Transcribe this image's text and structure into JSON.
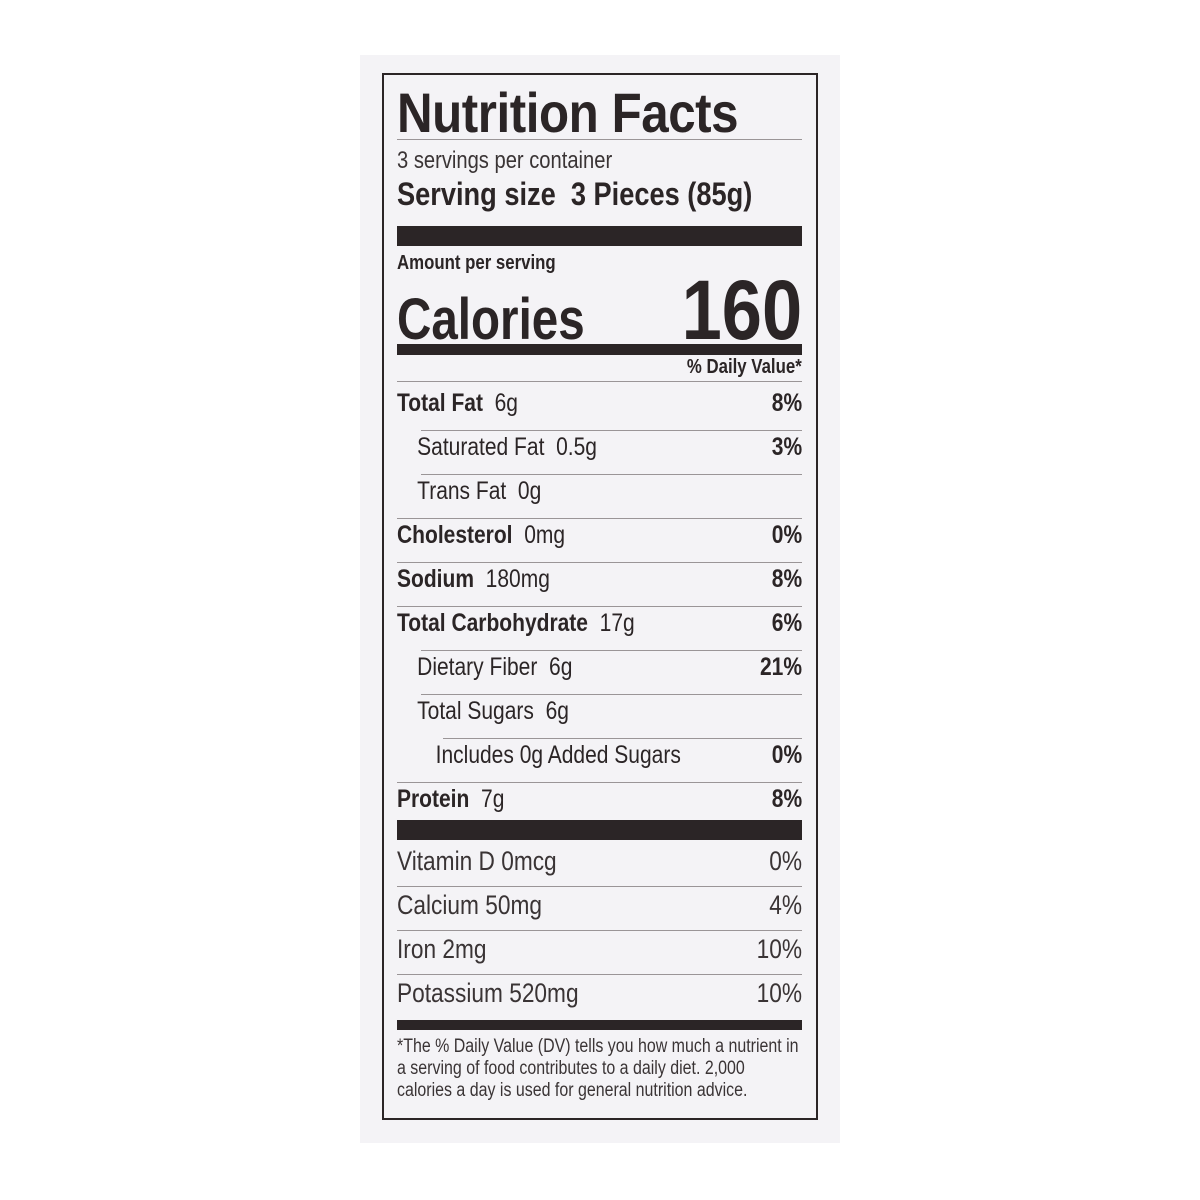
{
  "title": "Nutrition Facts",
  "servings_per_container": "3 servings per container",
  "serving_size": {
    "label": "Serving size",
    "value": "3 Pieces (85g)"
  },
  "amount_per_serving": "Amount per serving",
  "calories": {
    "label": "Calories",
    "value": "160"
  },
  "daily_value_header": "% Daily Value*",
  "nutrients": [
    {
      "name": "Total Fat",
      "amount": "6g",
      "dv": "8%"
    },
    {
      "name": "Saturated Fat",
      "amount": "0.5g",
      "dv": "3%"
    },
    {
      "name": "Trans Fat",
      "amount": "0g",
      "dv": ""
    },
    {
      "name": "Cholesterol",
      "amount": "0mg",
      "dv": "0%"
    },
    {
      "name": "Sodium",
      "amount": "180mg",
      "dv": "8%"
    },
    {
      "name": "Total Carbohydrate",
      "amount": "17g",
      "dv": "6%"
    },
    {
      "name": "Dietary Fiber",
      "amount": "6g",
      "dv": "21%"
    },
    {
      "name": "Total Sugars",
      "amount": "6g",
      "dv": ""
    },
    {
      "name": "Includes 0g Added Sugars",
      "amount": "",
      "dv": "0%"
    },
    {
      "name": "Protein",
      "amount": "7g",
      "dv": "8%"
    }
  ],
  "vitamins": [
    {
      "name": "Vitamin D",
      "amount": "0mcg",
      "dv": "0%"
    },
    {
      "name": "Calcium",
      "amount": "50mg",
      "dv": "4%"
    },
    {
      "name": "Iron",
      "amount": "2mg",
      "dv": "10%"
    },
    {
      "name": "Potassium",
      "amount": "520mg",
      "dv": "10%"
    }
  ],
  "footnote": "*The % Daily Value (DV) tells you how much a nutrient in a serving of food contributes to a daily diet. 2,000 calories a day is used for general nutrition advice."
}
